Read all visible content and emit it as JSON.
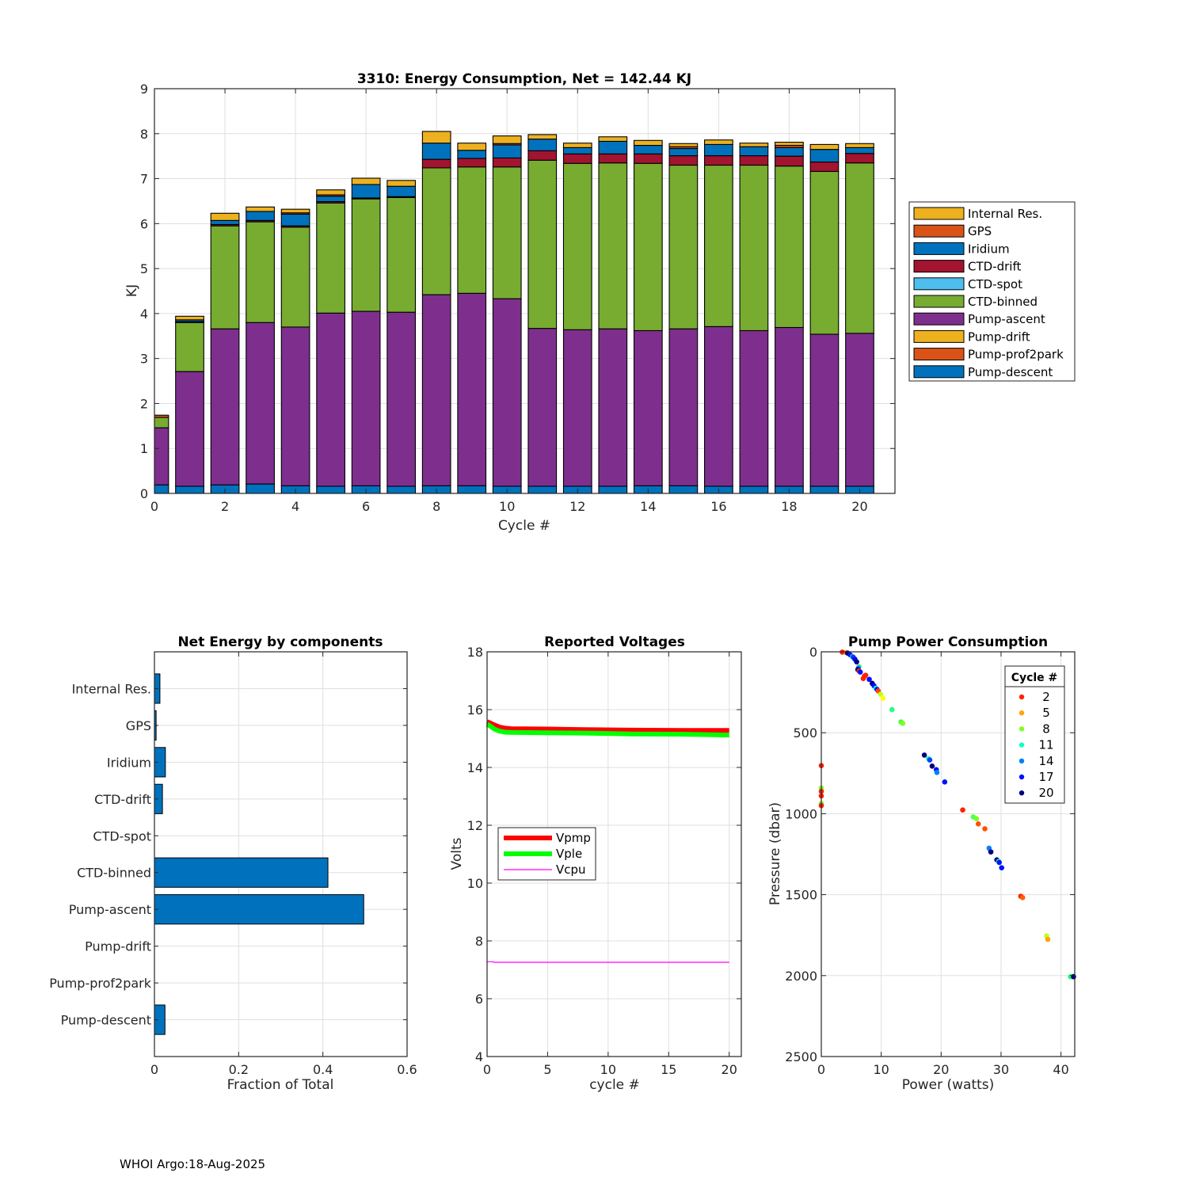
{
  "footer": "WHOI Argo:18-Aug-2025",
  "chart_data": [
    {
      "id": "energy",
      "type": "bar",
      "stacked": true,
      "title": "3310: Energy Consumption,  Net = 142.44 KJ",
      "xlabel": "Cycle #",
      "ylabel": "KJ",
      "xlim": [
        0,
        21
      ],
      "ylim": [
        0,
        9
      ],
      "xticks": [
        0,
        2,
        4,
        6,
        8,
        10,
        12,
        14,
        16,
        18,
        20
      ],
      "yticks": [
        0,
        1,
        2,
        3,
        4,
        5,
        6,
        7,
        8,
        9
      ],
      "grid": true,
      "legend_position": "outside-right",
      "categories": [
        0,
        1,
        2,
        3,
        4,
        5,
        6,
        7,
        8,
        9,
        10,
        11,
        12,
        13,
        14,
        15,
        16,
        17,
        18,
        19,
        20
      ],
      "series": [
        {
          "name": "Pump-descent",
          "color": "#0072BD",
          "values": [
            0.19,
            0.16,
            0.19,
            0.21,
            0.17,
            0.16,
            0.17,
            0.16,
            0.17,
            0.17,
            0.16,
            0.16,
            0.16,
            0.16,
            0.17,
            0.17,
            0.16,
            0.16,
            0.16,
            0.16,
            0.16
          ]
        },
        {
          "name": "Pump-prof2park",
          "color": "#D95319",
          "values": [
            0,
            0,
            0,
            0,
            0,
            0,
            0,
            0,
            0,
            0,
            0,
            0,
            0,
            0,
            0,
            0,
            0,
            0,
            0,
            0,
            0
          ]
        },
        {
          "name": "Pump-drift",
          "color": "#EDB120",
          "values": [
            0,
            0,
            0,
            0,
            0,
            0,
            0,
            0,
            0,
            0,
            0,
            0,
            0,
            0,
            0,
            0,
            0,
            0,
            0,
            0,
            0
          ]
        },
        {
          "name": "Pump-ascent",
          "color": "#7E2F8E",
          "values": [
            1.27,
            2.55,
            3.47,
            3.59,
            3.53,
            3.85,
            3.88,
            3.87,
            4.25,
            4.28,
            4.17,
            3.51,
            3.48,
            3.5,
            3.45,
            3.49,
            3.55,
            3.46,
            3.53,
            3.38,
            3.4
          ]
        },
        {
          "name": "CTD-binned",
          "color": "#77AC30",
          "values": [
            0.23,
            1.09,
            2.29,
            2.24,
            2.22,
            2.45,
            2.5,
            2.55,
            2.82,
            2.81,
            2.93,
            3.74,
            3.7,
            3.69,
            3.72,
            3.64,
            3.59,
            3.68,
            3.59,
            3.62,
            3.79
          ]
        },
        {
          "name": "CTD-spot",
          "color": "#4DBEEE",
          "values": [
            0,
            0,
            0,
            0,
            0,
            0,
            0,
            0,
            0,
            0,
            0,
            0,
            0,
            0,
            0,
            0,
            0,
            0,
            0,
            0,
            0
          ]
        },
        {
          "name": "CTD-drift",
          "color": "#A2142F",
          "values": [
            0,
            0.02,
            0.03,
            0.03,
            0.03,
            0.03,
            0.02,
            0.02,
            0.19,
            0.19,
            0.2,
            0.21,
            0.21,
            0.2,
            0.21,
            0.21,
            0.21,
            0.21,
            0.22,
            0.21,
            0.21
          ]
        },
        {
          "name": "Iridium",
          "color": "#0072BD",
          "values": [
            0,
            0.04,
            0.09,
            0.2,
            0.26,
            0.12,
            0.3,
            0.23,
            0.36,
            0.18,
            0.29,
            0.26,
            0.14,
            0.28,
            0.19,
            0.16,
            0.25,
            0.2,
            0.19,
            0.28,
            0.13
          ]
        },
        {
          "name": "GPS",
          "color": "#D95319",
          "values": [
            0.05,
            0,
            0,
            0,
            0.03,
            0.03,
            0,
            0,
            0,
            0,
            0.03,
            0,
            0,
            0,
            0,
            0.04,
            0,
            0,
            0.05,
            0,
            0
          ]
        },
        {
          "name": "Internal Res.",
          "color": "#EDB120",
          "values": [
            0,
            0.08,
            0.16,
            0.1,
            0.08,
            0.11,
            0.14,
            0.13,
            0.26,
            0.16,
            0.17,
            0.1,
            0.1,
            0.1,
            0.11,
            0.07,
            0.1,
            0.08,
            0.07,
            0.11,
            0.09
          ]
        }
      ],
      "legend_order": [
        "Internal Res.",
        "GPS",
        "Iridium",
        "CTD-drift",
        "CTD-spot",
        "CTD-binned",
        "Pump-ascent",
        "Pump-drift",
        "Pump-prof2park",
        "Pump-descent"
      ]
    },
    {
      "id": "components",
      "type": "bar",
      "orientation": "horizontal",
      "title": "Net Energy by components",
      "xlabel": "Fraction of Total",
      "ylabel": "",
      "xlim": [
        0,
        0.6
      ],
      "xticks": [
        0,
        0.2,
        0.4,
        0.6
      ],
      "grid": true,
      "color": "#0072BD",
      "categories": [
        "Internal Res.",
        "GPS",
        "Iridium",
        "CTD-drift",
        "CTD-spot",
        "CTD-binned",
        "Pump-ascent",
        "Pump-drift",
        "Pump-prof2park",
        "Pump-descent"
      ],
      "values": [
        0.013,
        0.004,
        0.026,
        0.019,
        0.0,
        0.412,
        0.497,
        0.0,
        0.0,
        0.025
      ]
    },
    {
      "id": "voltages",
      "type": "line",
      "title": "Reported Voltages",
      "xlabel": "cycle #",
      "ylabel": "Volts",
      "xlim": [
        0,
        21
      ],
      "ylim": [
        4,
        18
      ],
      "xticks": [
        0,
        5,
        10,
        15,
        20
      ],
      "yticks": [
        4,
        6,
        8,
        10,
        12,
        14,
        16,
        18
      ],
      "grid": true,
      "legend_position": "middle-left",
      "series": [
        {
          "name": "Vpmp",
          "color": "#FF0000",
          "width": "thick",
          "x": [
            0,
            0.3,
            0.6,
            1,
            1.5,
            2,
            5,
            8,
            12,
            16,
            20
          ],
          "y": [
            15.58,
            15.53,
            15.47,
            15.4,
            15.36,
            15.34,
            15.33,
            15.31,
            15.29,
            15.28,
            15.28
          ]
        },
        {
          "name": "Vple",
          "color": "#00FF00",
          "width": "thick",
          "x": [
            0,
            0.3,
            0.6,
            1,
            1.5,
            2,
            5,
            8,
            12,
            16,
            20
          ],
          "y": [
            15.5,
            15.42,
            15.33,
            15.26,
            15.22,
            15.21,
            15.2,
            15.19,
            15.16,
            15.15,
            15.12
          ]
        },
        {
          "name": "Vcpu",
          "color": "#FF00FF",
          "width": "thin",
          "x": [
            0,
            0.5,
            0.55,
            20
          ],
          "y": [
            7.28,
            7.28,
            7.26,
            7.26
          ]
        }
      ]
    },
    {
      "id": "pump",
      "type": "scatter",
      "title": "Pump Power Consumption",
      "xlabel": "Power (watts)",
      "ylabel": "Pressure (dbar)",
      "xlim": [
        0,
        42.3
      ],
      "ylim": [
        0,
        2500
      ],
      "y_reversed": true,
      "xticks": [
        0,
        10,
        20,
        30,
        40
      ],
      "yticks": [
        0,
        500,
        1000,
        1500,
        2000,
        2500
      ],
      "grid": true,
      "legend_title": "Cycle #",
      "legend_position": "top-right",
      "legend": [
        {
          "label": "2",
          "color": "#FF2000"
        },
        {
          "label": "5",
          "color": "#FFA500"
        },
        {
          "label": "8",
          "color": "#80FF20"
        },
        {
          "label": "11",
          "color": "#10FFC0"
        },
        {
          "label": "14",
          "color": "#0080FF"
        },
        {
          "label": "17",
          "color": "#0010FF"
        },
        {
          "label": "20",
          "color": "#000080"
        }
      ],
      "points": [
        {
          "x": 3.5,
          "y": 2,
          "c": "#FF2000"
        },
        {
          "x": 4.2,
          "y": 5,
          "c": "#FF8000"
        },
        {
          "x": 4.4,
          "y": 8,
          "c": "#000080"
        },
        {
          "x": 4.8,
          "y": 18,
          "c": "#0010FF"
        },
        {
          "x": 5.2,
          "y": 30,
          "c": "#40FF80"
        },
        {
          "x": 5.3,
          "y": 32,
          "c": "#0040FF"
        },
        {
          "x": 5.6,
          "y": 45,
          "c": "#0010FF"
        },
        {
          "x": 5.9,
          "y": 62,
          "c": "#000080"
        },
        {
          "x": 6.3,
          "y": 92,
          "c": "#40FF80"
        },
        {
          "x": 6.2,
          "y": 100,
          "c": "#0080FF"
        },
        {
          "x": 6.1,
          "y": 110,
          "c": "#000080"
        },
        {
          "x": 6.3,
          "y": 118,
          "c": "#FF2000"
        },
        {
          "x": 6.5,
          "y": 125,
          "c": "#0010FF"
        },
        {
          "x": 7.2,
          "y": 150,
          "c": "#FF2000"
        },
        {
          "x": 7.0,
          "y": 165,
          "c": "#FF2000"
        },
        {
          "x": 7.4,
          "y": 145,
          "c": "#FF2000"
        },
        {
          "x": 8.0,
          "y": 170,
          "c": "#0010FF"
        },
        {
          "x": 8.5,
          "y": 195,
          "c": "#000080"
        },
        {
          "x": 8.8,
          "y": 210,
          "c": "#0010FF"
        },
        {
          "x": 9.1,
          "y": 225,
          "c": "#10FFC0"
        },
        {
          "x": 9.3,
          "y": 232,
          "c": "#0010FF"
        },
        {
          "x": 9.5,
          "y": 242,
          "c": "#FF4000"
        },
        {
          "x": 9.9,
          "y": 262,
          "c": "#C0FF20"
        },
        {
          "x": 10.3,
          "y": 287,
          "c": "#FFFF00"
        },
        {
          "x": 11.8,
          "y": 357,
          "c": "#20FF80"
        },
        {
          "x": 13.3,
          "y": 433,
          "c": "#40FF40"
        },
        {
          "x": 13.6,
          "y": 442,
          "c": "#80FF20"
        },
        {
          "x": 0,
          "y": 703,
          "c": "#FF2000"
        },
        {
          "x": 0,
          "y": 842,
          "c": "#80FF20"
        },
        {
          "x": 0,
          "y": 862,
          "c": "#FF2000"
        },
        {
          "x": 0,
          "y": 890,
          "c": "#FF2000"
        },
        {
          "x": 0,
          "y": 937,
          "c": "#80FF20"
        },
        {
          "x": 0,
          "y": 950,
          "c": "#FF2000"
        },
        {
          "x": 17.2,
          "y": 638,
          "c": "#000080"
        },
        {
          "x": 17.9,
          "y": 660,
          "c": "#10FFC0"
        },
        {
          "x": 18.1,
          "y": 668,
          "c": "#0040FF"
        },
        {
          "x": 18.5,
          "y": 706,
          "c": "#000080"
        },
        {
          "x": 19.2,
          "y": 728,
          "c": "#0010FF"
        },
        {
          "x": 19.3,
          "y": 745,
          "c": "#0080FF"
        },
        {
          "x": 20.6,
          "y": 804,
          "c": "#0010FF"
        },
        {
          "x": 23.6,
          "y": 977,
          "c": "#FF2000"
        },
        {
          "x": 25.3,
          "y": 1018,
          "c": "#FFFF00"
        },
        {
          "x": 25.4,
          "y": 1021,
          "c": "#40FF80"
        },
        {
          "x": 25.9,
          "y": 1031,
          "c": "#80FF20"
        },
        {
          "x": 26.2,
          "y": 1063,
          "c": "#FF5000"
        },
        {
          "x": 27.3,
          "y": 1093,
          "c": "#FF5000"
        },
        {
          "x": 28.0,
          "y": 1213,
          "c": "#0080FF"
        },
        {
          "x": 28.3,
          "y": 1236,
          "c": "#000080"
        },
        {
          "x": 29.3,
          "y": 1285,
          "c": "#000080"
        },
        {
          "x": 29.6,
          "y": 1295,
          "c": "#10FFC0"
        },
        {
          "x": 29.7,
          "y": 1301,
          "c": "#0010FF"
        },
        {
          "x": 30.1,
          "y": 1334,
          "c": "#0010FF"
        },
        {
          "x": 33.3,
          "y": 1510,
          "c": "#FF2000"
        },
        {
          "x": 33.6,
          "y": 1518,
          "c": "#FF6000"
        },
        {
          "x": 37.6,
          "y": 1755,
          "c": "#C0FF20"
        },
        {
          "x": 37.8,
          "y": 1776,
          "c": "#FFA500"
        },
        {
          "x": 41.6,
          "y": 2007,
          "c": "#20FF60"
        },
        {
          "x": 42.0,
          "y": 2005,
          "c": "#10FFC0"
        },
        {
          "x": 42.1,
          "y": 2007,
          "c": "#000080"
        }
      ]
    }
  ]
}
